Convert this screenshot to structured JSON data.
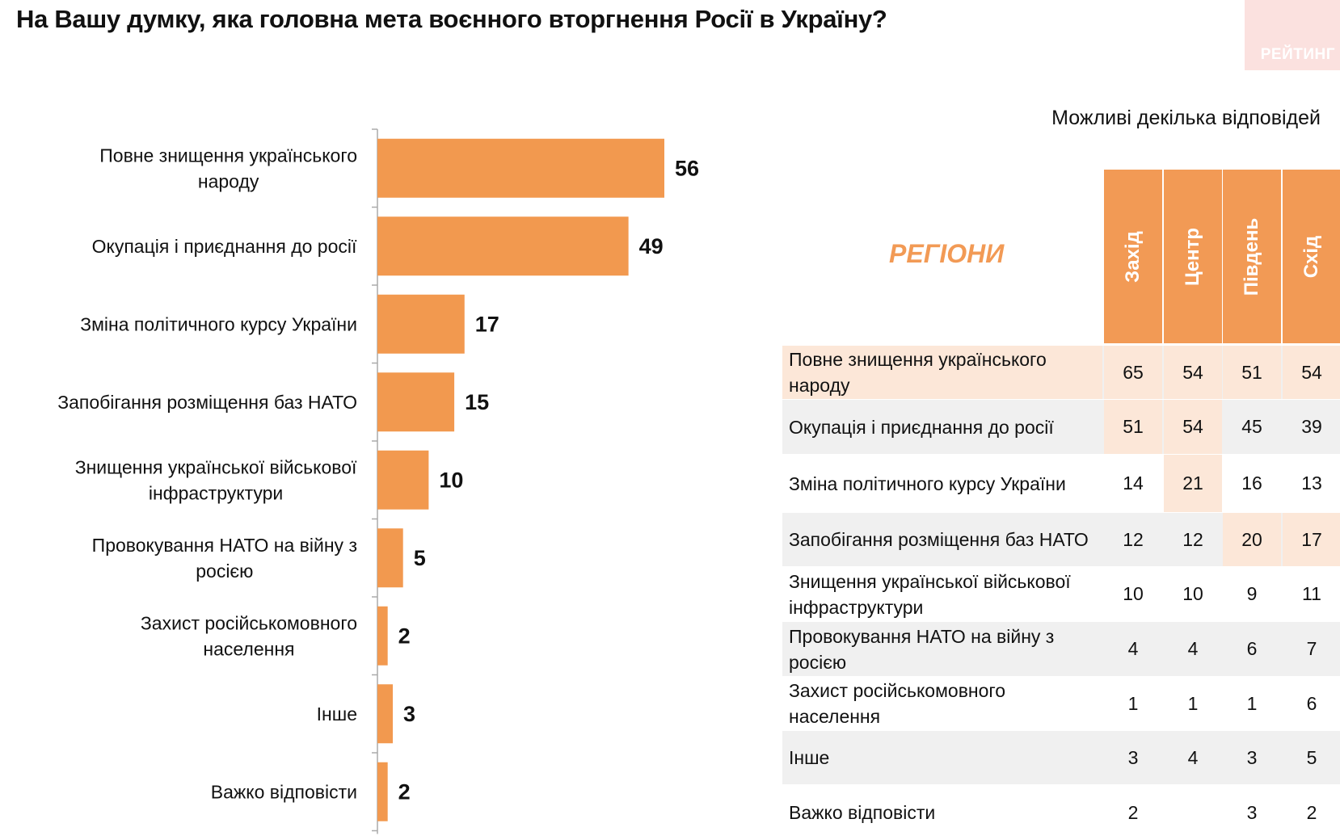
{
  "title": "На Вашу думку, яка головна мета воєнного вторгнення Росії в Україну?",
  "brand": "РЕЙТИНГ",
  "note": "Можливі декілька відповідей",
  "colors": {
    "bar": "#F2994F",
    "highlight": "#FCE7D8",
    "row_band": "#F0F0F0",
    "header": "#F29A55"
  },
  "chart_data": {
    "type": "bar",
    "orientation": "horizontal",
    "categories": [
      "Повне знищення українського народу",
      "Окупація і приєднання до росії",
      "Зміна політичного курсу України",
      "Запобігання розміщення баз НАТО",
      "Знищення української військової інфраструктури",
      "Провокування НАТО на війну з росією",
      "Захист російськомовного населення",
      "Інше",
      "Важко відповісти"
    ],
    "category_lines": [
      [
        "Повне знищення українського",
        "народу"
      ],
      [
        "Окупація і приєднання до росії"
      ],
      [
        "Зміна політичного курсу України"
      ],
      [
        "Запобігання розміщення баз НАТО"
      ],
      [
        "Знищення української військової",
        "інфраструктури"
      ],
      [
        "Провокування НАТО на війну з",
        "росією"
      ],
      [
        "Захист російськомовного",
        "населення"
      ],
      [
        "Інше"
      ],
      [
        "Важко відповісти"
      ]
    ],
    "values": [
      56,
      49,
      17,
      15,
      10,
      5,
      2,
      3,
      2
    ],
    "xlim": [
      0,
      60
    ]
  },
  "table": {
    "header_label": "РЕГІОНИ",
    "columns": [
      "Захід",
      "Центр",
      "Південь",
      "Схід"
    ],
    "rows": [
      {
        "label": "Повне знищення українського народу",
        "values": [
          "65",
          "54",
          "51",
          "54"
        ],
        "label_highlight": true,
        "highlight": [
          true,
          true,
          true,
          true
        ]
      },
      {
        "label": "Окупація і приєднання до росії",
        "values": [
          "51",
          "54",
          "45",
          "39"
        ],
        "label_highlight": false,
        "highlight": [
          true,
          true,
          false,
          false
        ]
      },
      {
        "label": "Зміна політичного курсу України",
        "values": [
          "14",
          "21",
          "16",
          "13"
        ],
        "label_highlight": false,
        "highlight": [
          false,
          true,
          false,
          false
        ]
      },
      {
        "label": "Запобігання розміщення баз НАТО",
        "values": [
          "12",
          "12",
          "20",
          "17"
        ],
        "label_highlight": false,
        "highlight": [
          false,
          false,
          true,
          true
        ]
      },
      {
        "label": "Знищення української військової інфраструктури",
        "values": [
          "10",
          "10",
          "9",
          "11"
        ],
        "label_highlight": false,
        "highlight": [
          false,
          false,
          false,
          false
        ]
      },
      {
        "label": "Провокування НАТО на війну з росією",
        "values": [
          "4",
          "4",
          "6",
          "7"
        ],
        "label_highlight": false,
        "highlight": [
          false,
          false,
          false,
          false
        ]
      },
      {
        "label": "Захист російськомовного населення",
        "values": [
          "1",
          "1",
          "1",
          "6"
        ],
        "label_highlight": false,
        "highlight": [
          false,
          false,
          false,
          false
        ]
      },
      {
        "label": "Інше",
        "values": [
          "3",
          "4",
          "3",
          "5"
        ],
        "label_highlight": false,
        "highlight": [
          false,
          false,
          false,
          false
        ]
      },
      {
        "label": "Важко відповісти",
        "values": [
          "2",
          "",
          "3",
          "2"
        ],
        "label_highlight": false,
        "highlight": [
          false,
          false,
          false,
          false
        ]
      }
    ]
  }
}
